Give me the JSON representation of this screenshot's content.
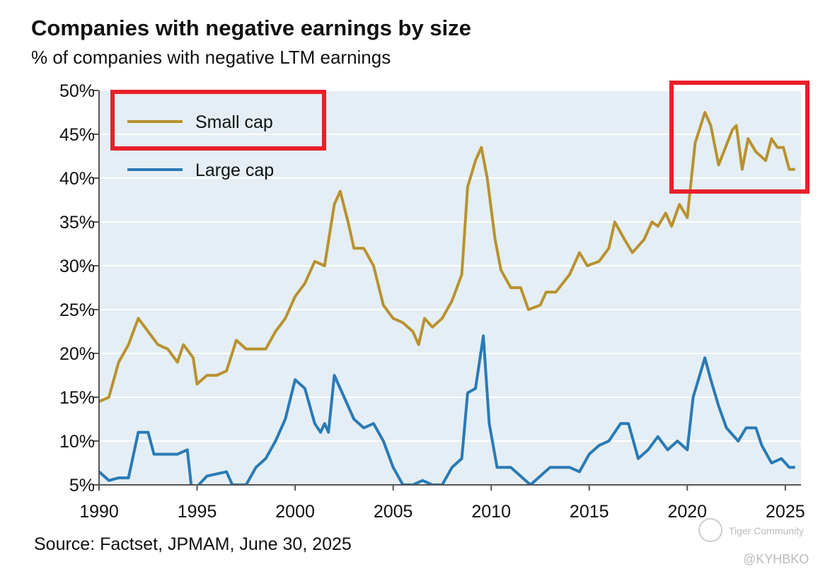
{
  "chart_data": {
    "type": "line",
    "title": "Companies with negative earnings by size",
    "subtitle": "% of companies with negative LTM earnings",
    "source": "Source: Factset, JPMAM, June 30, 2025",
    "watermark": [
      "Tiger Community",
      "@KYHBKO"
    ],
    "legend": "upper left",
    "grid": true,
    "xlim": [
      1990,
      2025.8
    ],
    "xticks": [
      1990,
      1995,
      2000,
      2005,
      2010,
      2015,
      2020,
      2025
    ],
    "ylim": [
      5,
      50
    ],
    "yticks": [
      {
        "value": 5,
        "label": "5%"
      },
      {
        "value": 10,
        "label": "10%"
      },
      {
        "value": 15,
        "label": "15%"
      },
      {
        "value": 20,
        "label": "20%"
      },
      {
        "value": 25,
        "label": "25%"
      },
      {
        "value": 30,
        "label": "30%"
      },
      {
        "value": 35,
        "label": "35%"
      },
      {
        "value": 40,
        "label": "40%"
      },
      {
        "value": 45,
        "label": "45%"
      },
      {
        "value": 50,
        "label": "50%"
      }
    ],
    "series": [
      {
        "name": "Small cap",
        "color": "#b8922f",
        "x": [
          1990,
          1990.5,
          1991,
          1991.5,
          1992,
          1992.5,
          1993,
          1993.5,
          1994,
          1994.3,
          1994.8,
          1995,
          1995.5,
          1996,
          1996.5,
          1997,
          1997.5,
          1998,
          1998.5,
          1999,
          1999.5,
          2000,
          2000.5,
          2001,
          2001.5,
          2002,
          2002.3,
          2002.7,
          2003,
          2003.5,
          2004,
          2004.5,
          2005,
          2005.5,
          2006,
          2006.3,
          2006.6,
          2007,
          2007.5,
          2008,
          2008.5,
          2008.8,
          2009.2,
          2009.5,
          2009.8,
          2010.2,
          2010.5,
          2011,
          2011.5,
          2011.9,
          2012.5,
          2012.8,
          2013.3,
          2014,
          2014.5,
          2014.9,
          2015.5,
          2016,
          2016.3,
          2016.8,
          2017.2,
          2017.8,
          2018.2,
          2018.5,
          2018.9,
          2019.2,
          2019.6,
          2020,
          2020.4,
          2020.9,
          2021.2,
          2021.6,
          2022.3,
          2022.5,
          2022.8,
          2023.1,
          2023.5,
          2024,
          2024.3,
          2024.6,
          2024.9,
          2025.2,
          2025.5
        ],
        "values": [
          14.5,
          15,
          19,
          21,
          24,
          22.5,
          21,
          20.5,
          19,
          21,
          19.5,
          16.5,
          17.5,
          17.5,
          18,
          21.5,
          20.5,
          20.5,
          20.5,
          22.5,
          24,
          26.5,
          28,
          30.5,
          30,
          37,
          38.5,
          35,
          32,
          32,
          30,
          25.5,
          24,
          23.5,
          22.5,
          21,
          24,
          23,
          24,
          26,
          29,
          39,
          42,
          43.5,
          40,
          33,
          29.5,
          27.5,
          27.5,
          25,
          25.5,
          27,
          27,
          29,
          31.5,
          30,
          30.5,
          32,
          35,
          33,
          31.5,
          33,
          35,
          34.5,
          36,
          34.5,
          37,
          35.5,
          44,
          47.5,
          46,
          41.5,
          45.5,
          46,
          41,
          44.5,
          43,
          42,
          44.5,
          43.5,
          43.5,
          41,
          41
        ]
      },
      {
        "name": "Large cap",
        "color": "#2a7ab5",
        "x": [
          1990,
          1990.5,
          1991,
          1991.5,
          1992,
          1992.5,
          1992.8,
          1993.5,
          1994,
          1994.5,
          1994.7,
          1995,
          1995.5,
          1996.5,
          1996.8,
          1997.5,
          1998,
          1998.5,
          1999,
          1999.5,
          2000,
          2000.5,
          2001,
          2001.3,
          2001.5,
          2001.7,
          2002,
          2002.5,
          2003,
          2003.5,
          2004,
          2004.5,
          2005,
          2005.5,
          2006,
          2006.5,
          2007,
          2007.5,
          2008,
          2008.5,
          2008.8,
          2009.2,
          2009.6,
          2009.9,
          2010.3,
          2011,
          2011.5,
          2012,
          2012.5,
          2013,
          2014,
          2014.5,
          2015,
          2015.5,
          2016,
          2016.6,
          2017,
          2017.5,
          2018,
          2018.5,
          2019,
          2019.5,
          2020,
          2020.3,
          2020.9,
          2021.2,
          2021.6,
          2022,
          2022.6,
          2023,
          2023.5,
          2023.8,
          2024.3,
          2024.8,
          2025.2,
          2025.5
        ],
        "values": [
          6.5,
          5.5,
          5.8,
          5.8,
          11,
          11,
          8.5,
          8.5,
          8.5,
          9,
          5,
          4.8,
          6,
          6.5,
          5,
          5,
          7,
          8,
          10,
          12.5,
          17,
          16,
          12,
          11,
          12,
          11,
          17.5,
          15,
          12.5,
          11.5,
          12,
          10,
          7,
          5,
          5,
          5.5,
          5,
          5,
          7,
          8,
          15.5,
          16,
          22,
          12,
          7,
          7,
          6,
          5,
          6,
          7,
          7,
          6.5,
          8.5,
          9.5,
          10,
          12,
          12,
          8,
          9,
          10.5,
          9,
          10,
          9,
          15,
          19.5,
          17,
          14,
          11.5,
          10,
          11.5,
          11.5,
          9.5,
          7.5,
          8,
          7,
          7
        ]
      }
    ]
  }
}
